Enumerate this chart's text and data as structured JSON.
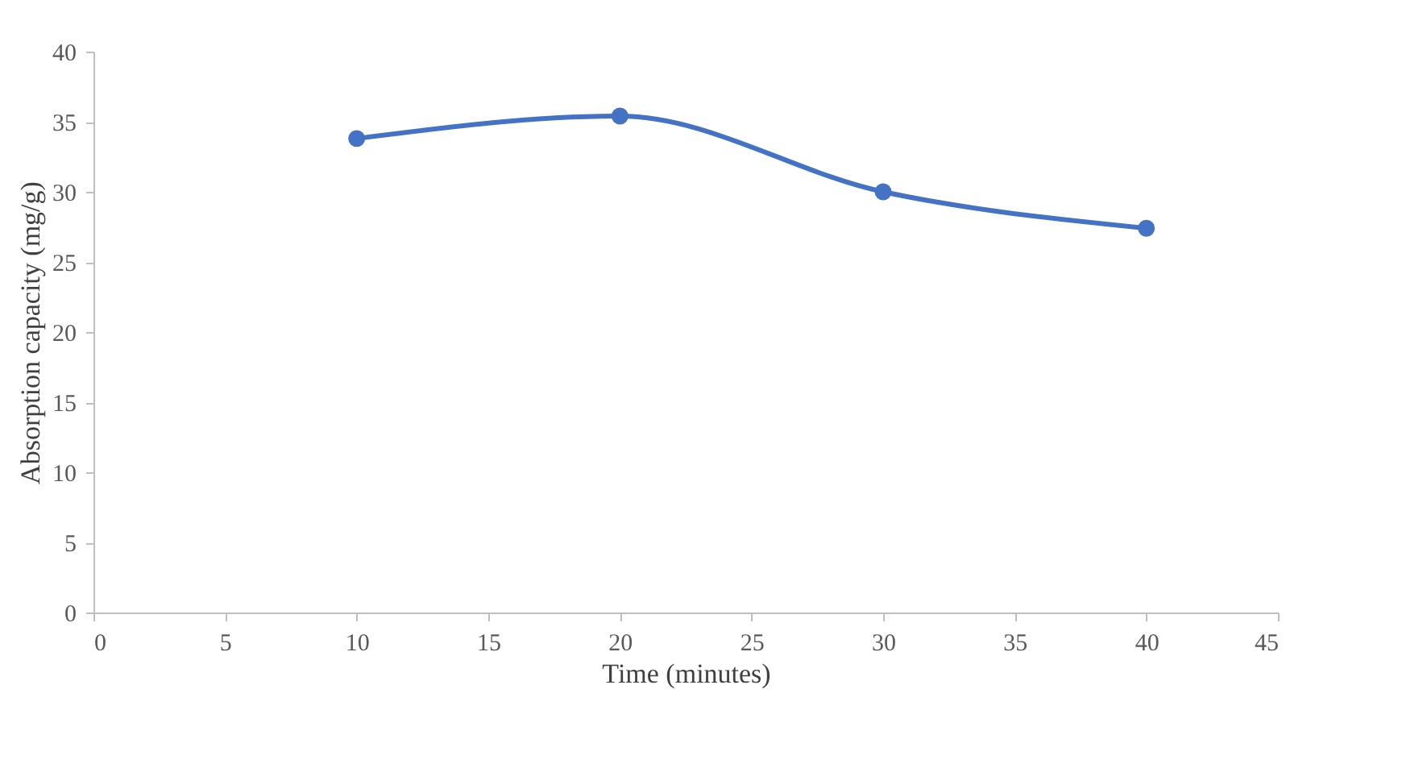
{
  "chart_data": {
    "type": "line",
    "xlabel": "Time (minutes)",
    "ylabel": "Absorption capacity (mg/g)",
    "x": [
      10,
      20,
      30,
      40
    ],
    "series": [
      {
        "color": "#4472c4",
        "values": [
          33.8,
          35.4,
          30.0,
          27.4
        ]
      }
    ],
    "xlim": [
      0,
      45
    ],
    "xticks": [
      0,
      5,
      10,
      15,
      20,
      25,
      30,
      35,
      40,
      45
    ],
    "ylim": [
      0,
      40
    ],
    "yticks": [
      0,
      5,
      10,
      15,
      20,
      25,
      30,
      35,
      40
    ],
    "marker": "circle",
    "line_style": "solid"
  }
}
